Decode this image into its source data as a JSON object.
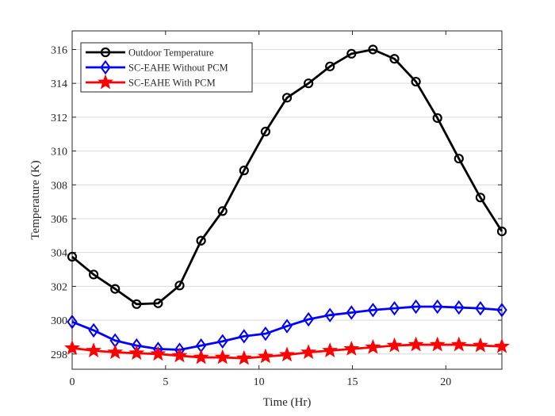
{
  "chart_data": {
    "type": "line",
    "title": "",
    "xlabel": "Time (Hr)",
    "ylabel": "Temperature (K)",
    "xlim": [
      0,
      23
    ],
    "ylim": [
      297.1,
      317.1
    ],
    "xticks": [
      0,
      5,
      10,
      15,
      20
    ],
    "yticks": [
      298,
      300,
      302,
      304,
      306,
      308,
      310,
      312,
      314,
      316
    ],
    "grid": "horizontal",
    "legend_position": "top-left",
    "x": [
      0,
      1.15,
      2.3,
      3.45,
      4.6,
      5.75,
      6.9,
      8.05,
      9.2,
      10.35,
      11.5,
      12.65,
      13.8,
      14.95,
      16.1,
      17.25,
      18.4,
      19.55,
      20.7,
      21.85,
      23
    ],
    "series": [
      {
        "name": "Outdoor Temperature",
        "color": "#000000",
        "marker": "circle",
        "values": [
          303.75,
          302.7,
          301.85,
          300.95,
          301.0,
          302.05,
          304.7,
          306.45,
          308.85,
          311.15,
          313.15,
          314.0,
          315.0,
          315.75,
          316.0,
          315.45,
          314.1,
          311.95,
          309.55,
          307.25,
          305.25
        ]
      },
      {
        "name": "SC-EAHE Without PCM",
        "color": "#0000ff",
        "marker": "diamond",
        "values": [
          299.9,
          299.4,
          298.8,
          298.5,
          298.3,
          298.25,
          298.5,
          298.75,
          299.05,
          299.2,
          299.65,
          300.05,
          300.3,
          300.45,
          300.6,
          300.7,
          300.8,
          300.8,
          300.75,
          300.7,
          300.6
        ]
      },
      {
        "name": "SC-EAHE With PCM",
        "color": "#ff0000",
        "marker": "star",
        "values": [
          298.35,
          298.2,
          298.1,
          298.05,
          298.0,
          297.9,
          297.8,
          297.8,
          297.75,
          297.85,
          297.95,
          298.1,
          298.2,
          298.3,
          298.4,
          298.5,
          298.55,
          298.55,
          298.55,
          298.5,
          298.45
        ]
      }
    ]
  }
}
